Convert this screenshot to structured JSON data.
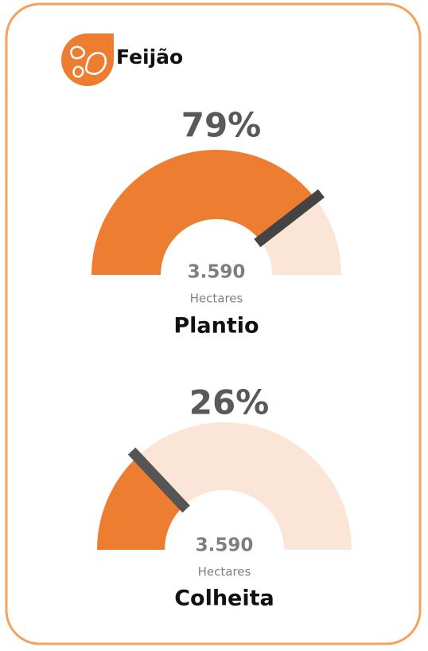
{
  "header": {
    "title": "Feijão"
  },
  "chart_data": [
    {
      "type": "gauge",
      "title": "Plantio",
      "values": [
        79
      ],
      "value_labels": [
        "79%"
      ],
      "caption": "3.590",
      "unit": "Hectares",
      "ylim": [
        0,
        100
      ],
      "color": "#ed7d31",
      "track_color": "#fbe5d6",
      "needle_color": "#444444"
    },
    {
      "type": "gauge",
      "title": "Colheita",
      "values": [
        26
      ],
      "value_labels": [
        "26%"
      ],
      "caption": "3.590",
      "unit": "Hectares",
      "ylim": [
        0,
        100
      ],
      "color": "#ed7d31",
      "track_color": "#fbe5d6",
      "needle_color": "#555555"
    }
  ]
}
